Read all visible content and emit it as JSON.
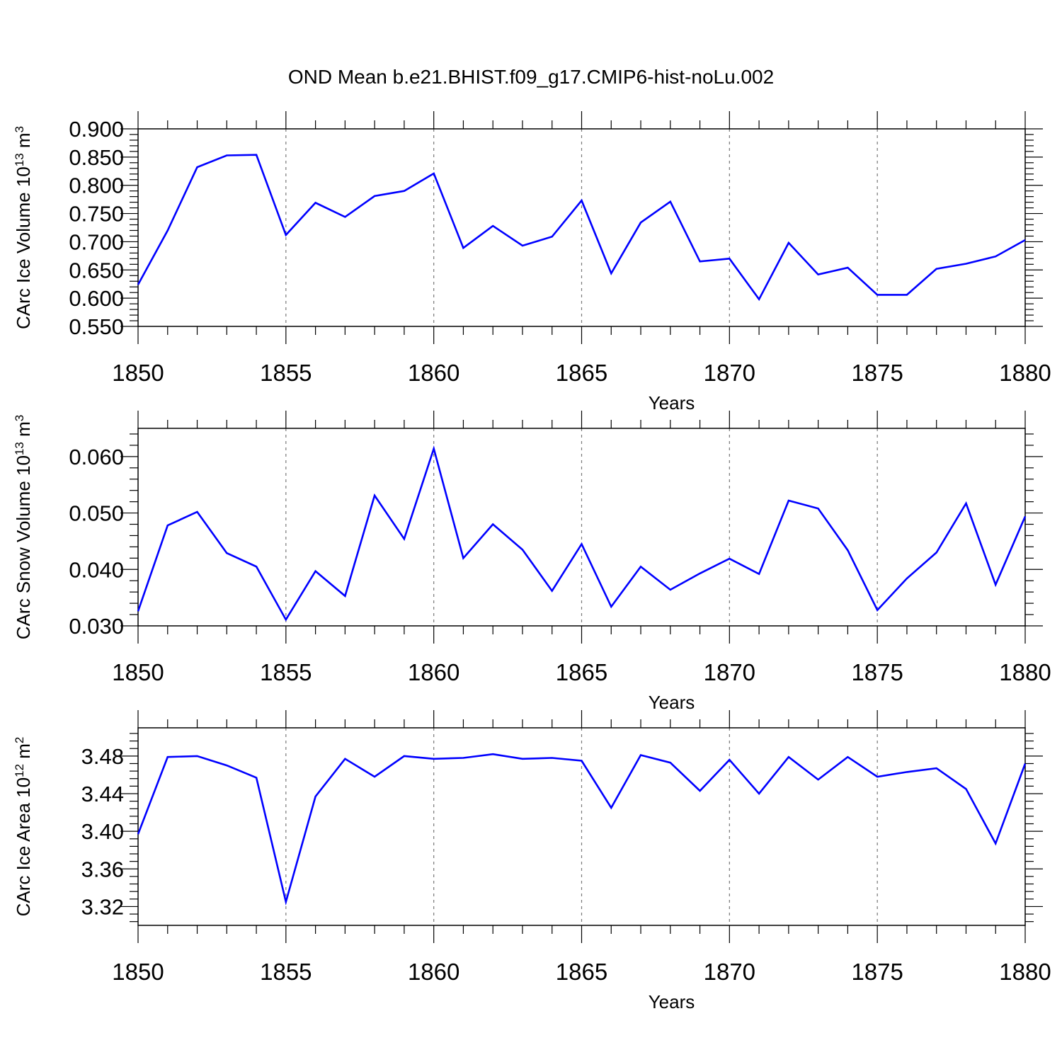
{
  "title": "OND Mean b.e21.BHIST.f09_g17.CMIP6-hist-noLu.002",
  "colors": {
    "line": "#0000ff",
    "axis": "#000000",
    "grid": "#777777"
  },
  "chart_data": [
    {
      "type": "line",
      "ylabel": "CArc Ice Volume 10^13 m^3",
      "ylabel_main": "CArc Ice Volume 10",
      "ylabel_exp": "13",
      "ylabel_unit": " m",
      "ylabel_unit_exp": "3",
      "xlabel": "Years",
      "xlim": [
        1850,
        1880
      ],
      "ylim": [
        0.55,
        0.9
      ],
      "yticks": [
        0.55,
        0.6,
        0.65,
        0.7,
        0.75,
        0.8,
        0.85,
        0.9
      ],
      "ytick_labels": [
        "0.550",
        "0.600",
        "0.650",
        "0.700",
        "0.750",
        "0.800",
        "0.850",
        "0.900"
      ],
      "xticks": [
        1850,
        1855,
        1860,
        1865,
        1870,
        1875,
        1880
      ],
      "xtick_labels": [
        "1850",
        "1855",
        "1860",
        "1865",
        "1870",
        "1875",
        "1880"
      ],
      "grid": "dashed vertical at major x ticks",
      "series": [
        {
          "name": "CArc Ice Volume",
          "x": [
            1850,
            1851,
            1852,
            1853,
            1854,
            1855,
            1856,
            1857,
            1858,
            1859,
            1860,
            1861,
            1862,
            1863,
            1864,
            1865,
            1866,
            1867,
            1868,
            1869,
            1870,
            1871,
            1872,
            1873,
            1874,
            1875,
            1876,
            1877,
            1878,
            1879,
            1880
          ],
          "values": [
            0.624,
            0.72,
            0.832,
            0.853,
            0.854,
            0.712,
            0.769,
            0.744,
            0.781,
            0.79,
            0.821,
            0.689,
            0.728,
            0.693,
            0.709,
            0.773,
            0.644,
            0.734,
            0.771,
            0.665,
            0.67,
            0.598,
            0.698,
            0.642,
            0.654,
            0.606,
            0.606,
            0.652,
            0.661,
            0.674,
            0.703
          ]
        }
      ]
    },
    {
      "type": "line",
      "ylabel": "CArc Snow Volume 10^13 m^3",
      "ylabel_main": "CArc Snow Volume 10",
      "ylabel_exp": "13",
      "ylabel_unit": " m",
      "ylabel_unit_exp": "3",
      "xlabel": "Years",
      "xlim": [
        1850,
        1880
      ],
      "ylim": [
        0.03,
        0.065
      ],
      "yticks": [
        0.03,
        0.04,
        0.05,
        0.06
      ],
      "ytick_labels": [
        "0.030",
        "0.040",
        "0.050",
        "0.060"
      ],
      "xticks": [
        1850,
        1855,
        1860,
        1865,
        1870,
        1875,
        1880
      ],
      "xtick_labels": [
        "1850",
        "1855",
        "1860",
        "1865",
        "1870",
        "1875",
        "1880"
      ],
      "grid": "dashed vertical at major x ticks",
      "series": [
        {
          "name": "CArc Snow Volume",
          "x": [
            1850,
            1851,
            1852,
            1853,
            1854,
            1855,
            1856,
            1857,
            1858,
            1859,
            1860,
            1861,
            1862,
            1863,
            1864,
            1865,
            1866,
            1867,
            1868,
            1869,
            1870,
            1871,
            1872,
            1873,
            1874,
            1875,
            1876,
            1877,
            1878,
            1879,
            1880
          ],
          "values": [
            0.0326,
            0.0478,
            0.0502,
            0.0429,
            0.0405,
            0.0311,
            0.0397,
            0.0353,
            0.0531,
            0.0454,
            0.0614,
            0.042,
            0.048,
            0.0435,
            0.0362,
            0.0445,
            0.0334,
            0.0405,
            0.0364,
            0.0393,
            0.0419,
            0.0392,
            0.0522,
            0.0508,
            0.0434,
            0.0328,
            0.0384,
            0.043,
            0.0517,
            0.0373,
            0.0494
          ]
        }
      ]
    },
    {
      "type": "line",
      "ylabel": "CArc Ice Area 10^12 m^2",
      "ylabel_main": "CArc Ice Area 10",
      "ylabel_exp": "12",
      "ylabel_unit": " m",
      "ylabel_unit_exp": "2",
      "xlabel": "Years",
      "xlim": [
        1850,
        1880
      ],
      "ylim": [
        3.3,
        3.51
      ],
      "yticks": [
        3.32,
        3.36,
        3.4,
        3.44,
        3.48
      ],
      "ytick_labels": [
        "3.32",
        "3.36",
        "3.40",
        "3.44",
        "3.48"
      ],
      "xticks": [
        1850,
        1855,
        1860,
        1865,
        1870,
        1875,
        1880
      ],
      "xtick_labels": [
        "1850",
        "1855",
        "1860",
        "1865",
        "1870",
        "1875",
        "1880"
      ],
      "grid": "dashed vertical at major x ticks",
      "series": [
        {
          "name": "CArc Ice Area",
          "x": [
            1850,
            1851,
            1852,
            1853,
            1854,
            1855,
            1856,
            1857,
            1858,
            1859,
            1860,
            1861,
            1862,
            1863,
            1864,
            1865,
            1866,
            1867,
            1868,
            1869,
            1870,
            1871,
            1872,
            1873,
            1874,
            1875,
            1876,
            1877,
            1878,
            1879,
            1880
          ],
          "values": [
            3.397,
            3.479,
            3.48,
            3.47,
            3.457,
            3.325,
            3.437,
            3.477,
            3.458,
            3.48,
            3.477,
            3.478,
            3.482,
            3.477,
            3.478,
            3.475,
            3.425,
            3.481,
            3.473,
            3.443,
            3.476,
            3.44,
            3.479,
            3.455,
            3.479,
            3.458,
            3.463,
            3.467,
            3.445,
            3.387,
            3.472
          ]
        }
      ]
    }
  ]
}
